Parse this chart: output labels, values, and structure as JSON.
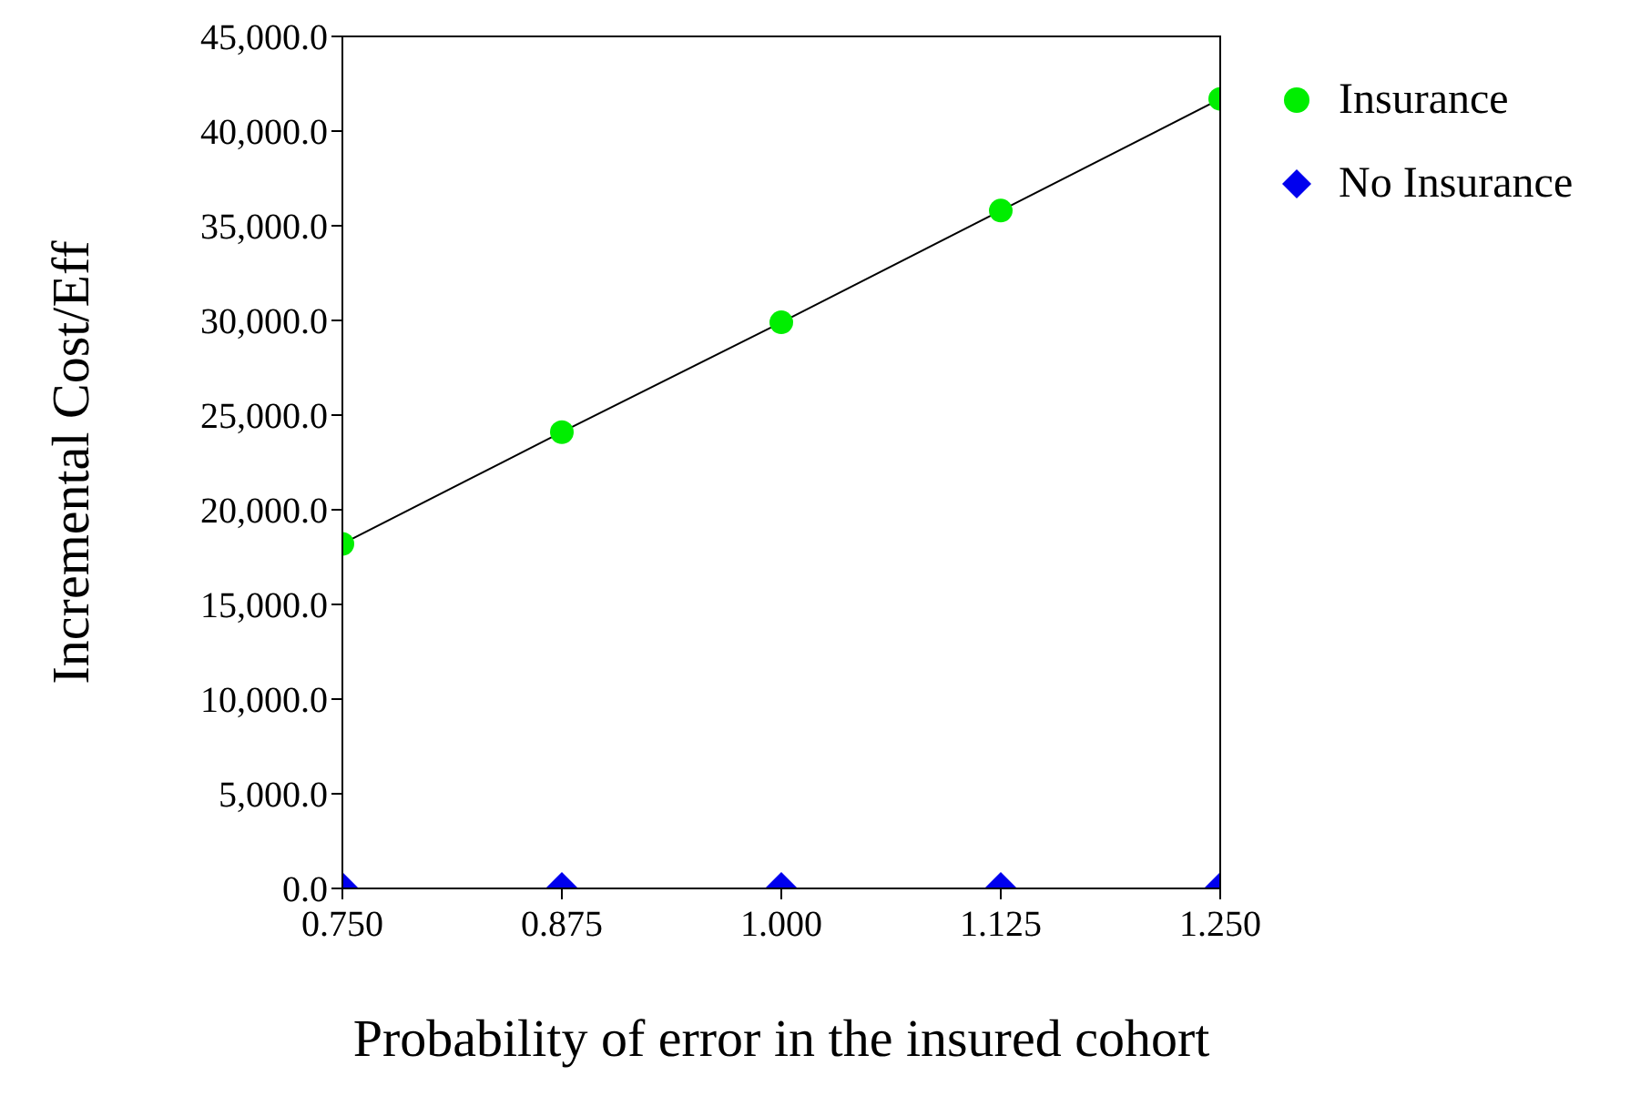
{
  "chart_data": {
    "type": "scatter",
    "xlabel": "Probability of error in the insured cohort",
    "ylabel": "Incremental Cost/Eff",
    "x": [
      0.75,
      0.875,
      1.0,
      1.125,
      1.25
    ],
    "series": [
      {
        "name": "Insurance",
        "color": "#00ee00",
        "marker": "circle",
        "values": [
          18200,
          24100,
          29900,
          35800,
          41700
        ]
      },
      {
        "type": "line",
        "color": "#000000",
        "marker": "none",
        "values": [
          18200,
          24100,
          29900,
          35800,
          41700
        ]
      },
      {
        "name": "No Insurance",
        "color": "#0000ee",
        "marker": "diamond",
        "values": [
          0,
          0,
          0,
          0,
          0
        ]
      }
    ],
    "xlim": [
      0.75,
      1.25
    ],
    "xticks": [
      {
        "value": 0.75,
        "label": "0.750"
      },
      {
        "value": 0.875,
        "label": "0.875"
      },
      {
        "value": 1.0,
        "label": "1.000"
      },
      {
        "value": 1.125,
        "label": "1.125"
      },
      {
        "value": 1.25,
        "label": "1.250"
      }
    ],
    "ylim": [
      0,
      45000
    ],
    "yticks": [
      {
        "value": 0,
        "label": "0.0"
      },
      {
        "value": 5000,
        "label": "5,000.0"
      },
      {
        "value": 10000,
        "label": "10,000.0"
      },
      {
        "value": 15000,
        "label": "15,000.0"
      },
      {
        "value": 20000,
        "label": "20,000.0"
      },
      {
        "value": 25000,
        "label": "25,000.0"
      },
      {
        "value": 30000,
        "label": "30,000.0"
      },
      {
        "value": 35000,
        "label": "35,000.0"
      },
      {
        "value": 40000,
        "label": "40,000.0"
      },
      {
        "value": 45000,
        "label": "45,000.0"
      }
    ],
    "grid": false,
    "legend": "top right"
  }
}
